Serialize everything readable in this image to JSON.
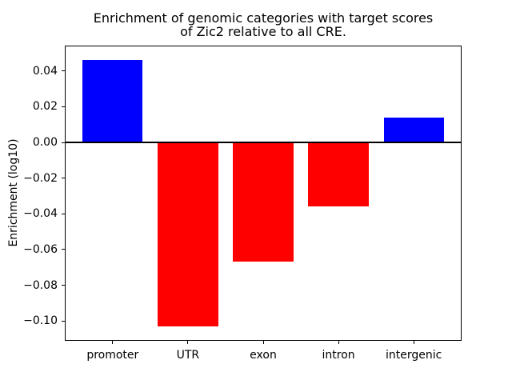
{
  "figure": {
    "background": "#ffffff"
  },
  "chart_data": {
    "type": "bar",
    "title": "Enrichment of genomic categories with target scores\nof Zic2 relative to all CRE.",
    "xlabel": "",
    "ylabel": "Enrichment (log10)",
    "categories": [
      "promoter",
      "UTR",
      "exon",
      "intron",
      "intergenic"
    ],
    "values": [
      0.046,
      -0.103,
      -0.067,
      -0.036,
      0.014
    ],
    "bar_colors": [
      "#0000ff",
      "#ff0000",
      "#ff0000",
      "#ff0000",
      "#0000ff"
    ],
    "positive_color": "#0000ff",
    "negative_color": "#ff0000",
    "yticks": [
      0.04,
      0.02,
      0.0,
      -0.02,
      -0.04,
      -0.06,
      -0.08,
      -0.1
    ],
    "ytick_labels": [
      "0.04",
      "0.02",
      "0.00",
      "−0.02",
      "−0.04",
      "−0.06",
      "−0.08",
      "−0.10"
    ],
    "ylim": [
      -0.1107,
      0.0538
    ],
    "xlim": [
      -0.625,
      4.625
    ],
    "bar_width_fraction": 0.8,
    "grid": false,
    "legend": null,
    "zero_line": true,
    "zero_line_color": "#000000",
    "axis_color": "#000000"
  }
}
